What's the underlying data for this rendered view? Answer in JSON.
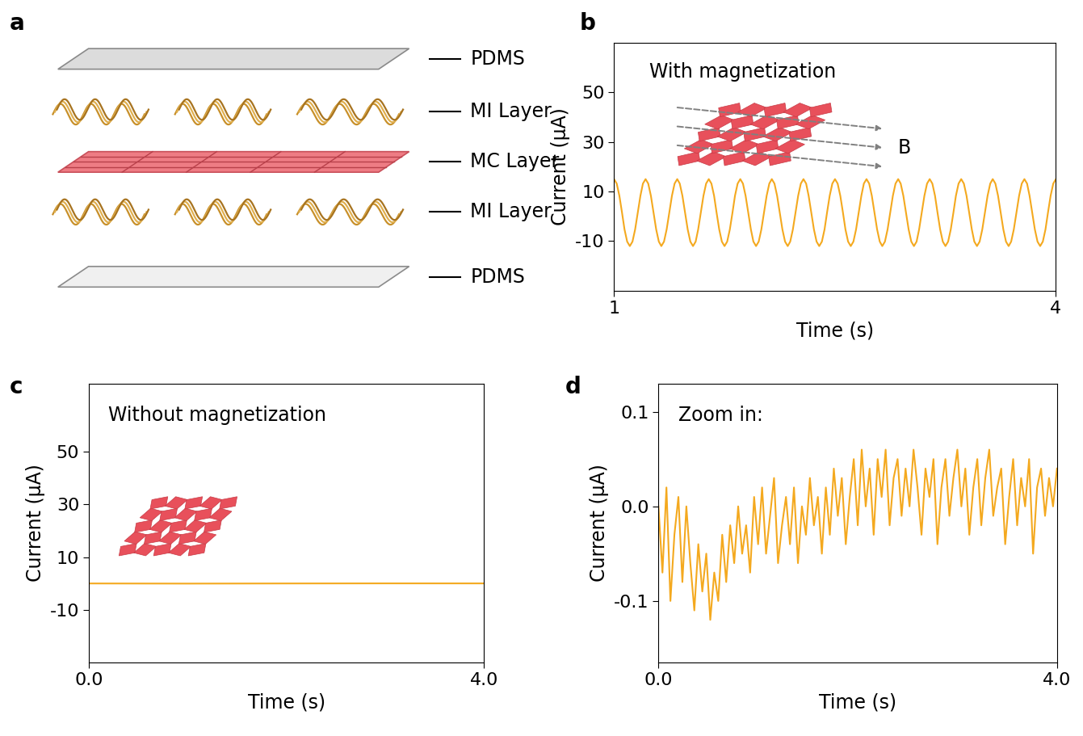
{
  "diagram": {
    "panel": "a",
    "layers": [
      "PDMS",
      "MI Layer",
      "MC Layer",
      "MI Layer",
      "PDMS"
    ]
  },
  "chart_data": [
    {
      "panel": "b",
      "type": "line",
      "annotations": [
        "With magnetization",
        "B"
      ],
      "xlabel": "Time (s)",
      "ylabel": "Current (µA)",
      "color": "#F4A91F",
      "xlim": [
        1,
        4
      ],
      "xticks": [
        1,
        4
      ],
      "ylim": [
        -30,
        70
      ],
      "yticks": [
        -10,
        10,
        30,
        50
      ],
      "x": [
        1.0,
        1.018,
        1.036,
        1.054,
        1.071,
        1.089,
        1.107,
        1.125,
        1.143,
        1.161,
        1.179,
        1.196,
        1.214,
        1.232,
        1.25,
        1.268,
        1.286,
        1.304,
        1.321,
        1.339,
        1.357,
        1.375,
        1.393,
        1.411,
        1.429,
        1.446,
        1.464,
        1.482,
        1.5,
        1.518,
        1.536,
        1.554,
        1.571,
        1.589,
        1.607,
        1.625,
        1.643,
        1.661,
        1.679,
        1.696,
        1.714,
        1.732,
        1.75,
        1.768,
        1.786,
        1.804,
        1.821,
        1.839,
        1.857,
        1.875,
        1.893,
        1.911,
        1.929,
        1.946,
        1.964,
        1.982,
        2.0,
        2.018,
        2.036,
        2.054,
        2.071,
        2.089,
        2.107,
        2.125,
        2.143,
        2.161,
        2.179,
        2.196,
        2.214,
        2.232,
        2.25,
        2.268,
        2.286,
        2.304,
        2.321,
        2.339,
        2.357,
        2.375,
        2.393,
        2.411,
        2.429,
        2.446,
        2.464,
        2.482,
        2.5,
        2.518,
        2.536,
        2.554,
        2.571,
        2.589,
        2.607,
        2.625,
        2.643,
        2.661,
        2.679,
        2.696,
        2.714,
        2.732,
        2.75,
        2.768,
        2.786,
        2.804,
        2.821,
        2.839,
        2.857,
        2.875,
        2.893,
        2.911,
        2.929,
        2.946,
        2.964,
        2.982,
        3.0,
        3.018,
        3.036,
        3.054,
        3.071,
        3.089,
        3.107,
        3.125,
        3.143,
        3.161,
        3.179,
        3.196,
        3.214,
        3.232,
        3.25,
        3.268,
        3.286,
        3.304,
        3.321,
        3.339,
        3.357,
        3.375,
        3.393,
        3.411,
        3.429,
        3.446,
        3.464,
        3.482,
        3.5,
        3.518,
        3.536,
        3.554,
        3.571,
        3.589,
        3.607,
        3.625,
        3.643,
        3.661,
        3.679,
        3.696,
        3.714,
        3.732,
        3.75,
        3.768,
        3.786,
        3.804,
        3.821,
        3.839,
        3.857,
        3.875,
        3.893,
        3.911,
        3.929,
        3.946,
        3.964,
        3.982,
        4.0
      ],
      "values": [
        15,
        13.2,
        8.3,
        1.5,
        -5.3,
        -10.2,
        -12,
        -10.2,
        -5.3,
        1.5,
        8.3,
        13.2,
        15,
        13.2,
        8.3,
        1.5,
        -5.3,
        -10.2,
        -12,
        -10.2,
        -5.3,
        1.5,
        8.3,
        13.2,
        15,
        13.2,
        8.3,
        1.5,
        -5.3,
        -10.2,
        -12,
        -10.2,
        -5.3,
        1.5,
        8.3,
        13.2,
        15,
        13.2,
        8.3,
        1.5,
        -5.3,
        -10.2,
        -12,
        -10.2,
        -5.3,
        1.5,
        8.3,
        13.2,
        15,
        13.2,
        8.3,
        1.5,
        -5.3,
        -10.2,
        -12,
        -10.2,
        -5.3,
        1.5,
        8.3,
        13.2,
        15,
        13.2,
        8.3,
        1.5,
        -5.3,
        -10.2,
        -12,
        -10.2,
        -5.3,
        1.5,
        8.3,
        13.2,
        15,
        13.2,
        8.3,
        1.5,
        -5.3,
        -10.2,
        -12,
        -10.2,
        -5.3,
        1.5,
        8.3,
        13.2,
        15,
        13.2,
        8.3,
        1.5,
        -5.3,
        -10.2,
        -12,
        -10.2,
        -5.3,
        1.5,
        8.3,
        13.2,
        15,
        13.2,
        8.3,
        1.5,
        -5.3,
        -10.2,
        -12,
        -10.2,
        -5.3,
        1.5,
        8.3,
        13.2,
        15,
        13.2,
        8.3,
        1.5,
        -5.3,
        -10.2,
        -12,
        -10.2,
        -5.3,
        1.5,
        8.3,
        13.2,
        15,
        13.2,
        8.3,
        1.5,
        -5.3,
        -10.2,
        -12,
        -10.2,
        -5.3,
        1.5,
        8.3,
        13.2,
        15,
        13.2,
        8.3,
        1.5,
        -5.3,
        -10.2,
        -12,
        -10.2,
        -5.3,
        1.5,
        8.3,
        13.2,
        15,
        13.2,
        8.3,
        1.5,
        -5.3,
        -10.2,
        -12,
        -10.2,
        -5.3,
        1.5,
        8.3,
        13.2,
        15,
        13.2,
        8.3,
        1.5,
        -5.3,
        -10.2,
        -12,
        -10.2,
        -5.3,
        1.5,
        8.3,
        13.2,
        15
      ]
    },
    {
      "panel": "c",
      "type": "line",
      "annotations": [
        "Without magnetization"
      ],
      "xlabel": "Time (s)",
      "ylabel": "Current (µA)",
      "color": "#F4A91F",
      "xlim": [
        0,
        4
      ],
      "xticks": [
        {
          "value": 0,
          "label": "0.0"
        },
        {
          "value": 4,
          "label": "4.0"
        }
      ],
      "ylim": [
        -30,
        76
      ],
      "yticks": [
        -10,
        10,
        30,
        50
      ],
      "x": [
        0.0,
        1.0,
        2.0,
        3.0,
        4.0
      ],
      "values": [
        0.0,
        -0.05,
        0.0,
        0.03,
        0.02
      ]
    },
    {
      "panel": "d",
      "type": "line",
      "annotations": [
        "Zoom in:"
      ],
      "xlabel": "Time (s)",
      "ylabel": "Current (µA)",
      "color": "#F4A91F",
      "xlim": [
        0,
        4
      ],
      "xticks": [
        {
          "value": 0,
          "label": "0.0"
        },
        {
          "value": 4,
          "label": "4.0"
        }
      ],
      "ylim": [
        -0.165,
        0.13
      ],
      "yticks": [
        -0.1,
        {
          "value": 0,
          "label": "0.0"
        },
        0.1
      ],
      "x": [
        0.0,
        0.04,
        0.08,
        0.12,
        0.16,
        0.2,
        0.24,
        0.28,
        0.32,
        0.36,
        0.4,
        0.44,
        0.48,
        0.52,
        0.56,
        0.6,
        0.64,
        0.68,
        0.72,
        0.76,
        0.8,
        0.84,
        0.88,
        0.92,
        0.96,
        1.0,
        1.04,
        1.08,
        1.12,
        1.16,
        1.2,
        1.24,
        1.28,
        1.32,
        1.36,
        1.4,
        1.44,
        1.48,
        1.52,
        1.56,
        1.6,
        1.64,
        1.68,
        1.72,
        1.76,
        1.8,
        1.84,
        1.88,
        1.92,
        1.96,
        2.0,
        2.04,
        2.08,
        2.12,
        2.16,
        2.2,
        2.24,
        2.28,
        2.32,
        2.36,
        2.4,
        2.44,
        2.48,
        2.52,
        2.56,
        2.6,
        2.64,
        2.68,
        2.72,
        2.76,
        2.8,
        2.84,
        2.88,
        2.92,
        2.96,
        3.0,
        3.04,
        3.08,
        3.12,
        3.16,
        3.2,
        3.24,
        3.28,
        3.32,
        3.36,
        3.4,
        3.44,
        3.48,
        3.52,
        3.56,
        3.6,
        3.64,
        3.68,
        3.72,
        3.76,
        3.8,
        3.84,
        3.88,
        3.92,
        3.96,
        4.0
      ],
      "values": [
        0.0,
        -0.07,
        0.02,
        -0.1,
        -0.03,
        0.01,
        -0.08,
        0.0,
        -0.06,
        -0.11,
        -0.04,
        -0.09,
        -0.05,
        -0.12,
        -0.07,
        -0.1,
        -0.03,
        -0.08,
        -0.02,
        -0.06,
        0.0,
        -0.05,
        -0.02,
        -0.07,
        0.01,
        -0.04,
        0.02,
        -0.05,
        -0.01,
        0.03,
        -0.06,
        -0.02,
        0.01,
        -0.04,
        0.02,
        -0.06,
        0.0,
        -0.03,
        0.03,
        -0.02,
        0.01,
        -0.05,
        0.02,
        -0.03,
        0.04,
        -0.01,
        0.03,
        -0.04,
        0.01,
        0.05,
        -0.02,
        0.06,
        0.0,
        0.04,
        -0.03,
        0.05,
        0.01,
        0.06,
        -0.02,
        0.03,
        0.05,
        -0.01,
        0.04,
        0.0,
        0.06,
        0.02,
        -0.03,
        0.04,
        0.01,
        0.05,
        -0.04,
        0.02,
        0.05,
        -0.01,
        0.03,
        0.06,
        0.0,
        0.04,
        -0.03,
        0.02,
        0.05,
        -0.02,
        0.03,
        0.06,
        -0.01,
        0.02,
        0.04,
        -0.04,
        0.01,
        0.05,
        -0.02,
        0.03,
        0.0,
        0.05,
        -0.05,
        0.02,
        0.04,
        -0.01,
        0.03,
        0.0,
        0.04
      ]
    }
  ]
}
